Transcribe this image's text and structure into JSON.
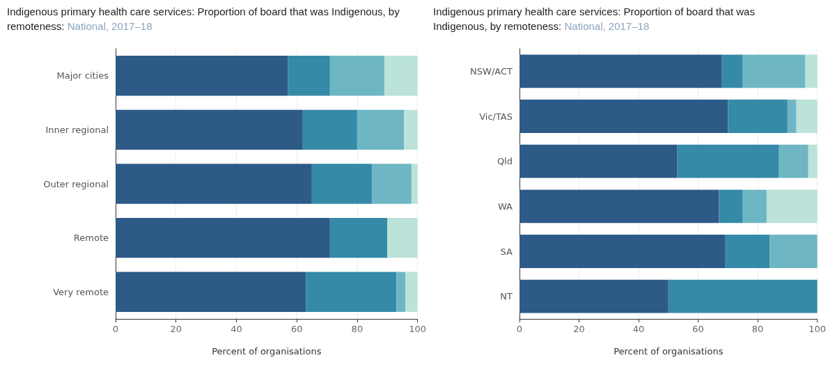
{
  "chart_data": [
    {
      "type": "bar",
      "orientation": "horizontal",
      "stacked": true,
      "title": "Indigenous primary health care services: Proportion of board that was Indigenous, by remoteness:",
      "subtitle": "National, 2017–18",
      "xlabel": "Percent of organisations",
      "categories": [
        "Major cities",
        "Inner regional",
        "Outer regional",
        "Remote",
        "Very remote"
      ],
      "series": [
        {
          "color": "#2d5a87",
          "values": [
            57,
            62,
            65,
            71,
            63
          ]
        },
        {
          "color": "#358aa8",
          "values": [
            14,
            18,
            20,
            19,
            30
          ]
        },
        {
          "color": "#6eb6c3",
          "values": [
            18,
            15.5,
            13,
            null,
            3
          ]
        },
        {
          "color": "#bce3d9",
          "values": [
            11,
            4.5,
            2,
            10,
            4
          ]
        }
      ],
      "xlim": [
        0,
        100
      ],
      "xticks": [
        0,
        20,
        40,
        60,
        80,
        100
      ],
      "grid": "x"
    },
    {
      "type": "bar",
      "orientation": "horizontal",
      "stacked": true,
      "title": "Indigenous primary health care services: Proportion of board that was Indigenous, by remoteness:",
      "subtitle": "National, 2017–18",
      "xlabel": "Percent of organisations",
      "categories": [
        "NSW/ACT",
        "Vic/TAS",
        "Qld",
        "WA",
        "SA",
        "NT"
      ],
      "series": [
        {
          "color": "#2d5a87",
          "values": [
            68,
            70,
            53,
            67,
            69,
            50
          ]
        },
        {
          "color": "#358aa8",
          "values": [
            7,
            20,
            34,
            8,
            15,
            50
          ]
        },
        {
          "color": "#6eb6c3",
          "values": [
            21,
            3,
            10,
            8,
            16,
            null
          ]
        },
        {
          "color": "#bce3d9",
          "values": [
            4,
            7,
            3,
            17,
            null,
            null
          ]
        }
      ],
      "xlim": [
        0,
        100
      ],
      "xticks": [
        0,
        20,
        40,
        60,
        80,
        100
      ],
      "grid": "x"
    }
  ]
}
